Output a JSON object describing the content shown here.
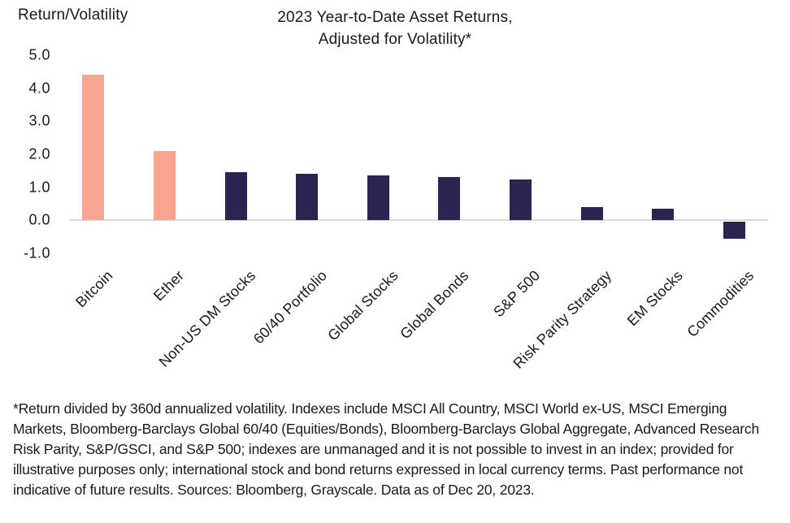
{
  "header": {
    "y_axis_title": "Return/Volatility",
    "title_line1": "2023 Year-to-Date Asset Returns,",
    "title_line2": "Adjusted for Volatility*"
  },
  "chart_data": {
    "type": "bar",
    "title": "2023 Year-to-Date Asset Returns, Adjusted for Volatility*",
    "ylabel": "Return/Volatility",
    "xlabel": "",
    "categories": [
      "Bitcoin",
      "Ether",
      "Non-US DM Stocks",
      "60/40 Portfolio",
      "Global Stocks",
      "Global Bonds",
      "S&P 500",
      "Risk Parity Strategy",
      "EM Stocks",
      "Commodities"
    ],
    "values": [
      4.4,
      2.1,
      1.45,
      1.4,
      1.35,
      1.3,
      1.25,
      0.4,
      0.35,
      -0.5
    ],
    "bar_colors": [
      "#F8A48E",
      "#F8A48E",
      "#2D2350",
      "#2D2350",
      "#2D2350",
      "#2D2350",
      "#2D2350",
      "#2D2350",
      "#2D2350",
      "#2D2350"
    ],
    "y_tick_labels": [
      "5.0",
      "4.0",
      "3.0",
      "2.0",
      "1.0",
      "0.0",
      "-1.0"
    ],
    "ylim": [
      -1.0,
      5.0
    ],
    "grid": "zero-line-only",
    "legend": "none",
    "colors": {
      "crypto_bar": "#F8A48E",
      "traditional_bar": "#2D2350",
      "axis_line": "#DADADA",
      "text": "#1A1A1A"
    }
  },
  "footnote": "*Return divided by 360d annualized volatility. Indexes include MSCI All Country, MSCI World ex-US, MSCI Emerging Markets, Bloomberg-Barclays Global 60/40 (Equities/Bonds), Bloomberg-Barclays Global Aggregate, Advanced Research Risk Parity, S&P/GSCI, and S&P 500; indexes are unmanaged and it is not possible to invest in an index; provided for illustrative purposes only; international stock and bond returns expressed in local currency terms. Past performance not indicative of future results. Sources: Bloomberg, Grayscale. Data as of Dec 20, 2023."
}
